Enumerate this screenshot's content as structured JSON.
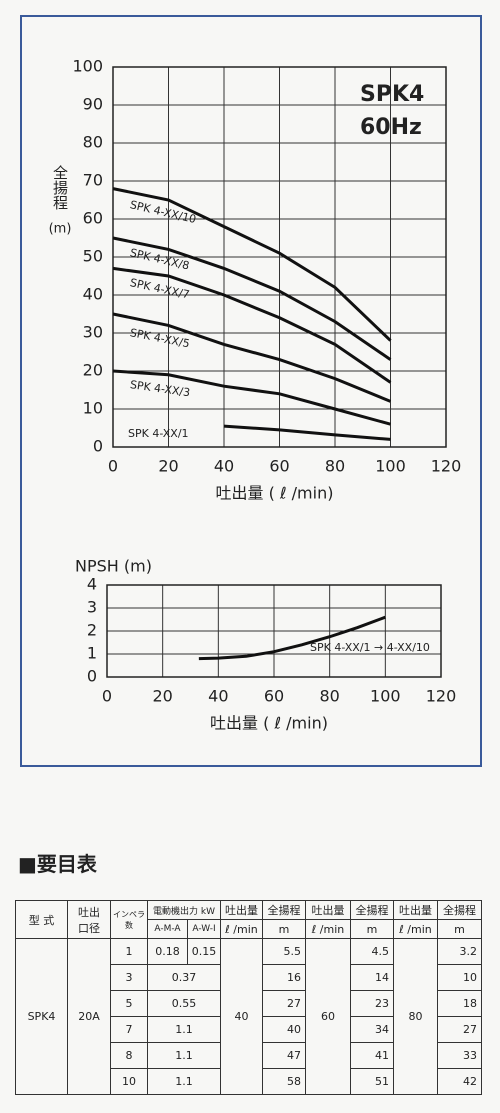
{
  "chart_data": [
    {
      "type": "line",
      "title": [
        "SPK4",
        "60Hz"
      ],
      "ylabel": "全揚程",
      "yunit": "(m)",
      "xlabel": "吐出量 ( ℓ /min)",
      "x": [
        0,
        20,
        40,
        60,
        80,
        100
      ],
      "series": [
        {
          "name": "SPK 4-XX/10",
          "color": "#111111",
          "values": [
            68,
            65,
            58,
            51,
            42,
            28
          ]
        },
        {
          "name": "SPK 4-XX/8",
          "color": "#111111",
          "values": [
            55,
            52,
            47,
            41,
            33,
            23
          ]
        },
        {
          "name": "SPK 4-XX/7",
          "color": "#111111",
          "values": [
            47,
            45,
            40,
            34,
            27,
            17
          ]
        },
        {
          "name": "SPK 4-XX/5",
          "color": "#111111",
          "values": [
            35,
            32,
            27,
            23,
            18,
            12
          ]
        },
        {
          "name": "SPK 4-XX/3",
          "color": "#111111",
          "values": [
            20,
            19,
            16,
            14,
            10,
            6
          ]
        },
        {
          "name": "SPK 4-XX/1",
          "color": "#111111",
          "values": [
            null,
            null,
            5.5,
            4.5,
            3.2,
            2
          ]
        }
      ],
      "xlim": [
        0,
        120
      ],
      "xticks": [
        0,
        20,
        40,
        60,
        80,
        100,
        120
      ],
      "ylim": [
        0,
        100
      ],
      "yticks": [
        0,
        10,
        20,
        30,
        40,
        50,
        60,
        70,
        80,
        90,
        100
      ],
      "grid": true
    },
    {
      "type": "line",
      "ylabel": "NPSH (m)",
      "xlabel": "吐出量 ( ℓ /min)",
      "x": [
        33,
        40,
        50,
        60,
        70,
        80,
        90,
        100
      ],
      "series": [
        {
          "name": "SPK 4-XX/1 → 4-XX/10",
          "color": "#111111",
          "values": [
            0.8,
            0.82,
            0.9,
            1.1,
            1.4,
            1.75,
            2.15,
            2.6
          ]
        }
      ],
      "xlim": [
        0,
        120
      ],
      "xticks": [
        0,
        20,
        40,
        60,
        80,
        100,
        120
      ],
      "ylim": [
        0,
        4
      ],
      "yticks": [
        0,
        1,
        2,
        3,
        4
      ],
      "grid": true
    }
  ],
  "table_title": "■要目表",
  "table": {
    "header": {
      "model": "型 式",
      "bore": [
        "吐出",
        "口径"
      ],
      "stages": [
        "インペラ",
        "数"
      ],
      "power": "電動機出力 kW",
      "power_types": [
        "A-M-A",
        "A-W-I"
      ],
      "flow": "吐出量",
      "flow_unit": "ℓ /min",
      "head": "全揚程",
      "head_unit": "m"
    },
    "model": "SPK4",
    "bore": "20A",
    "flows": [
      40,
      60,
      80
    ],
    "rows": [
      {
        "stages": 1,
        "power": [
          0.18,
          0.15
        ],
        "heads": [
          5.5,
          4.5,
          3.2
        ]
      },
      {
        "stages": 3,
        "power": [
          0.37
        ],
        "heads": [
          16,
          14,
          10
        ]
      },
      {
        "stages": 5,
        "power": [
          0.55
        ],
        "heads": [
          27,
          23,
          18
        ]
      },
      {
        "stages": 7,
        "power": [
          1.1
        ],
        "heads": [
          40,
          34,
          27
        ]
      },
      {
        "stages": 8,
        "power": [
          1.1
        ],
        "heads": [
          47,
          41,
          33
        ]
      },
      {
        "stages": 10,
        "power": [
          1.1
        ],
        "heads": [
          58,
          51,
          42
        ]
      }
    ]
  }
}
